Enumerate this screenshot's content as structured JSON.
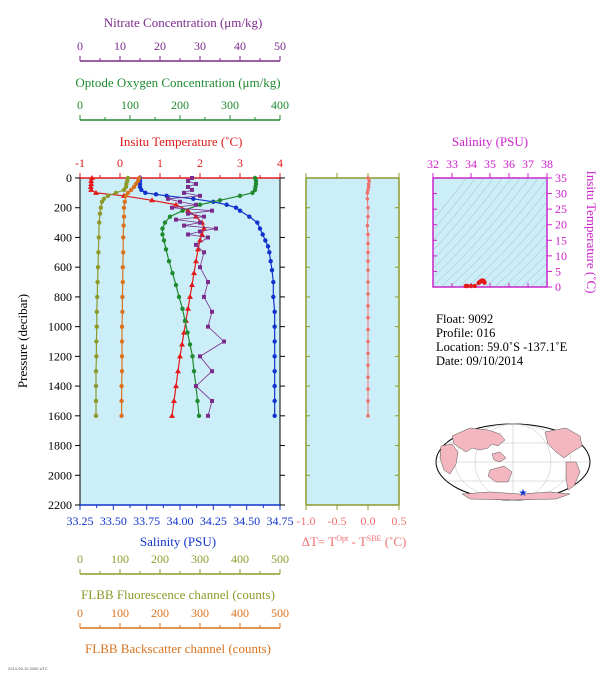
{
  "colors": {
    "plot_bg": "#cceef8",
    "nitrate": "#7b2b8b",
    "oxygen": "#1f8a2f",
    "temperature": "#e21a1a",
    "salinity": "#1133cc",
    "delta_t": "#f07070",
    "fluorescence": "#8d9a2a",
    "backscatter": "#d9731e",
    "ts_axis": "#cc22cc",
    "frame": "#000000"
  },
  "axes": {
    "nitrate": {
      "title": "Nitrate Concentration (μm/kg)",
      "ticks": [
        "0",
        "10",
        "20",
        "30",
        "40",
        "50"
      ]
    },
    "oxygen": {
      "title": "Optode Oxygen Concentration (μm/kg)",
      "ticks": [
        "0",
        "100",
        "200",
        "300",
        "400"
      ]
    },
    "temperature": {
      "title": "Insitu Temperature (˚C)",
      "ticks": [
        "-1",
        "0",
        "1",
        "2",
        "3",
        "4"
      ]
    },
    "salinity": {
      "title": "Salinity (PSU)",
      "ticks": [
        "33.25",
        "33.50",
        "33.75",
        "34.00",
        "34.25",
        "34.50",
        "34.75"
      ]
    },
    "pressure": {
      "title": "Pressure (decibar)",
      "ticks": [
        "0",
        "200",
        "400",
        "600",
        "800",
        "1000",
        "1200",
        "1400",
        "1600",
        "1800",
        "2000",
        "2200"
      ]
    },
    "fluorescence": {
      "title": "FLBB Fluorescence channel (counts)",
      "ticks": [
        "0",
        "100",
        "200",
        "300",
        "400",
        "500"
      ]
    },
    "backscatter": {
      "title": "FLBB Backscatter channel (counts)",
      "ticks": [
        "0",
        "100",
        "200",
        "300",
        "400",
        "500"
      ]
    },
    "delta_t": {
      "title_main": "ΔT= T",
      "sup1": "Opt",
      "mid": " - T",
      "sup2": "SBE",
      "unit": " (˚C)",
      "ticks": [
        "-1.0",
        "-0.5",
        "0.0",
        "0.5"
      ]
    },
    "ts_salinity": {
      "title": "Salinity (PSU)",
      "ticks": [
        "32",
        "33",
        "34",
        "35",
        "36",
        "37",
        "38"
      ]
    },
    "ts_temperature": {
      "title": "Insitu Temperature (˚C)",
      "ticks": [
        "0",
        "5",
        "10",
        "15",
        "20",
        "25",
        "30",
        "35"
      ]
    }
  },
  "float_info": {
    "float": "Float:  9092",
    "profile": "Profile:  016",
    "location": "Location:  59.0˚S  -137.1˚E",
    "date": "Date:  09/10/2014"
  },
  "footer_text": "2014-09-10 0000 UTC",
  "chart_data": [
    {
      "type": "line",
      "name": "profile",
      "ylabel": "Pressure (decibar)",
      "ylim": [
        2200,
        0
      ],
      "grid": false,
      "series": [
        {
          "name": "Salinity (PSU)",
          "xlim": [
            33.25,
            34.75
          ],
          "color": "#1133cc",
          "marker": "circle",
          "points": [
            [
              33.7,
              0
            ],
            [
              33.7,
              20
            ],
            [
              33.7,
              40
            ],
            [
              33.7,
              60
            ],
            [
              33.71,
              80
            ],
            [
              33.74,
              100
            ],
            [
              33.82,
              110
            ],
            [
              33.9,
              120
            ],
            [
              34.1,
              140
            ],
            [
              34.25,
              160
            ],
            [
              34.35,
              180
            ],
            [
              34.42,
              200
            ],
            [
              34.45,
              220
            ],
            [
              34.52,
              260
            ],
            [
              34.58,
              300
            ],
            [
              34.6,
              340
            ],
            [
              34.62,
              380
            ],
            [
              34.64,
              420
            ],
            [
              34.66,
              460
            ],
            [
              34.67,
              500
            ],
            [
              34.68,
              560
            ],
            [
              34.69,
              620
            ],
            [
              34.7,
              700
            ],
            [
              34.7,
              800
            ],
            [
              34.71,
              900
            ],
            [
              34.71,
              1000
            ],
            [
              34.71,
              1100
            ],
            [
              34.71,
              1200
            ],
            [
              34.71,
              1300
            ],
            [
              34.71,
              1400
            ],
            [
              34.71,
              1500
            ],
            [
              34.71,
              1600
            ]
          ]
        },
        {
          "name": "Insitu Temperature (˚C)",
          "xlim": [
            -1,
            4
          ],
          "color": "#e21a1a",
          "marker": "triangle",
          "points": [
            [
              -0.7,
              0
            ],
            [
              -0.72,
              20
            ],
            [
              -0.72,
              40
            ],
            [
              -0.73,
              60
            ],
            [
              -0.72,
              80
            ],
            [
              -0.6,
              100
            ],
            [
              0.1,
              120
            ],
            [
              0.8,
              150
            ],
            [
              1.4,
              180
            ],
            [
              1.7,
              220
            ],
            [
              1.9,
              260
            ],
            [
              2.05,
              300
            ],
            [
              2.1,
              340
            ],
            [
              2.05,
              380
            ],
            [
              2.0,
              420
            ],
            [
              1.95,
              480
            ],
            [
              1.9,
              560
            ],
            [
              1.85,
              640
            ],
            [
              1.8,
              720
            ],
            [
              1.75,
              800
            ],
            [
              1.7,
              880
            ],
            [
              1.65,
              960
            ],
            [
              1.6,
              1040
            ],
            [
              1.55,
              1120
            ],
            [
              1.5,
              1200
            ],
            [
              1.45,
              1300
            ],
            [
              1.4,
              1400
            ],
            [
              1.35,
              1500
            ],
            [
              1.3,
              1600
            ]
          ]
        },
        {
          "name": "Optode Oxygen Concentration (μm/kg)",
          "xlim": [
            0,
            400
          ],
          "color": "#1f8a2f",
          "marker": "circle",
          "points": [
            [
              350,
              0
            ],
            [
              352,
              20
            ],
            [
              352,
              40
            ],
            [
              351,
              60
            ],
            [
              350,
              80
            ],
            [
              345,
              100
            ],
            [
              320,
              120
            ],
            [
              280,
              150
            ],
            [
              240,
              180
            ],
            [
              205,
              220
            ],
            [
              180,
              260
            ],
            [
              170,
              300
            ],
            [
              165,
              340
            ],
            [
              165,
              380
            ],
            [
              168,
              420
            ],
            [
              172,
              480
            ],
            [
              178,
              560
            ],
            [
              185,
              640
            ],
            [
              192,
              720
            ],
            [
              198,
              800
            ],
            [
              205,
              880
            ],
            [
              210,
              960
            ],
            [
              215,
              1040
            ],
            [
              220,
              1120
            ],
            [
              225,
              1200
            ],
            [
              228,
              1300
            ],
            [
              232,
              1400
            ],
            [
              235,
              1500
            ],
            [
              238,
              1600
            ]
          ]
        },
        {
          "name": "Nitrate Concentration (μm/kg)",
          "xlim": [
            0,
            50
          ],
          "color": "#7b2b8b",
          "marker": "square",
          "points": [
            [
              28,
              0
            ],
            [
              27,
              20
            ],
            [
              29,
              40
            ],
            [
              27,
              60
            ],
            [
              28,
              80
            ],
            [
              26,
              100
            ],
            [
              30,
              120
            ],
            [
              22,
              140
            ],
            [
              25,
              160
            ],
            [
              29,
              180
            ],
            [
              23,
              200
            ],
            [
              33,
              220
            ],
            [
              27,
              240
            ],
            [
              31,
              260
            ],
            [
              24,
              280
            ],
            [
              30,
              300
            ],
            [
              26,
              320
            ],
            [
              34,
              340
            ],
            [
              30,
              360
            ],
            [
              27,
              380
            ],
            [
              32,
              400
            ],
            [
              29,
              450
            ],
            [
              31,
              500
            ],
            [
              30,
              600
            ],
            [
              32,
              700
            ],
            [
              31,
              800
            ],
            [
              33,
              900
            ],
            [
              32,
              1000
            ],
            [
              36,
              1100
            ],
            [
              30,
              1200
            ],
            [
              33,
              1300
            ],
            [
              29,
              1400
            ],
            [
              33,
              1500
            ],
            [
              32,
              1600
            ]
          ]
        },
        {
          "name": "FLBB Fluorescence channel (counts)",
          "xlim": [
            0,
            500
          ],
          "color": "#8d9a2a",
          "marker": "circle",
          "points": [
            [
              120,
              0
            ],
            [
              118,
              20
            ],
            [
              116,
              40
            ],
            [
              115,
              60
            ],
            [
              110,
              80
            ],
            [
              90,
              100
            ],
            [
              70,
              120
            ],
            [
              60,
              140
            ],
            [
              55,
              160
            ],
            [
              52,
              200
            ],
            [
              50,
              240
            ],
            [
              48,
              300
            ],
            [
              47,
              400
            ],
            [
              46,
              500
            ],
            [
              45,
              600
            ],
            [
              44,
              700
            ],
            [
              43,
              800
            ],
            [
              42,
              900
            ],
            [
              42,
              1000
            ],
            [
              41,
              1100
            ],
            [
              41,
              1200
            ],
            [
              40,
              1300
            ],
            [
              40,
              1400
            ],
            [
              40,
              1500
            ],
            [
              40,
              1600
            ]
          ]
        },
        {
          "name": "FLBB Backscatter channel (counts)",
          "xlim": [
            0,
            500
          ],
          "color": "#d9731e",
          "marker": "circle",
          "points": [
            [
              148,
              0
            ],
            [
              145,
              20
            ],
            [
              140,
              40
            ],
            [
              135,
              60
            ],
            [
              128,
              80
            ],
            [
              120,
              100
            ],
            [
              115,
              120
            ],
            [
              112,
              160
            ],
            [
              110,
              200
            ],
            [
              110,
              260
            ],
            [
              109,
              320
            ],
            [
              108,
              400
            ],
            [
              108,
              500
            ],
            [
              107,
              600
            ],
            [
              107,
              700
            ],
            [
              106,
              800
            ],
            [
              106,
              900
            ],
            [
              105,
              1000
            ],
            [
              105,
              1100
            ],
            [
              105,
              1200
            ],
            [
              105,
              1300
            ],
            [
              104,
              1400
            ],
            [
              104,
              1500
            ],
            [
              104,
              1600
            ]
          ]
        }
      ]
    },
    {
      "type": "line",
      "name": "delta_t",
      "xlabel": "ΔT= Tᴼᵖᵗ - Tˢᴮᴱ (˚C)",
      "xlim": [
        -1.0,
        0.5
      ],
      "ylim": [
        2200,
        0
      ],
      "series": [
        {
          "name": "ΔT",
          "color": "#f07070",
          "points": [
            [
              0.0,
              0
            ],
            [
              0.02,
              20
            ],
            [
              0.01,
              40
            ],
            [
              0.01,
              60
            ],
            [
              0.0,
              80
            ],
            [
              -0.01,
              100
            ],
            [
              -0.01,
              140
            ],
            [
              0.0,
              200
            ],
            [
              0.0,
              260
            ],
            [
              -0.01,
              320
            ],
            [
              0.0,
              380
            ],
            [
              0.0,
              440
            ],
            [
              0.0,
              500
            ],
            [
              0.0,
              560
            ],
            [
              0.0,
              620
            ],
            [
              0.0,
              700
            ],
            [
              0.0,
              780
            ],
            [
              0.0,
              860
            ],
            [
              0.0,
              940
            ],
            [
              0.0,
              1020
            ],
            [
              0.0,
              1100
            ],
            [
              0.0,
              1180
            ],
            [
              0.0,
              1260
            ],
            [
              0.0,
              1340
            ],
            [
              0.0,
              1420
            ],
            [
              0.0,
              1500
            ],
            [
              0.0,
              1600
            ]
          ]
        }
      ]
    },
    {
      "type": "scatter",
      "name": "ts_diagram",
      "xlabel": "Salinity (PSU)",
      "ylabel": "Insitu Temperature (˚C)",
      "xlim": [
        32,
        38
      ],
      "ylim": [
        0,
        35
      ],
      "series": [
        {
          "name": "T-S",
          "color": "#e21a1a",
          "points": [
            [
              34.4,
              1.3
            ],
            [
              34.45,
              1.6
            ],
            [
              34.5,
              1.8
            ],
            [
              34.55,
              2.0
            ],
            [
              34.6,
              2.1
            ],
            [
              34.65,
              2.0
            ],
            [
              34.68,
              1.8
            ],
            [
              34.7,
              1.6
            ],
            [
              34.71,
              1.4
            ],
            [
              34.2,
              0.2
            ],
            [
              34.0,
              -0.2
            ],
            [
              33.8,
              -0.6
            ],
            [
              33.72,
              -0.7
            ]
          ]
        }
      ]
    }
  ]
}
